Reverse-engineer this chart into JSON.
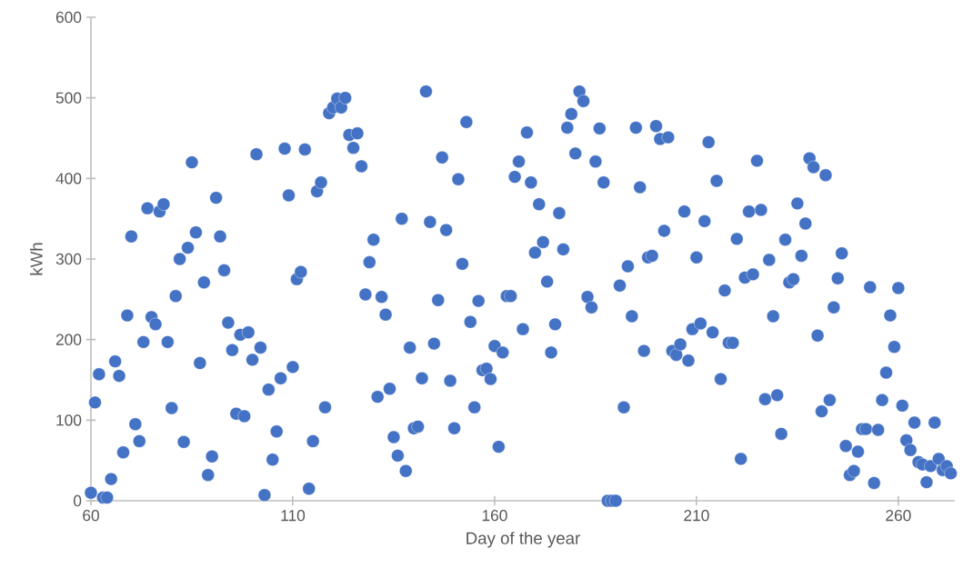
{
  "chart_data": {
    "type": "scatter",
    "xlabel": "Day of the year",
    "ylabel": "kWh",
    "color": "#4472c4",
    "marker": "circle",
    "xlim": [
      60,
      274
    ],
    "xticks": [
      60,
      110,
      160,
      210,
      260
    ],
    "ylim": [
      0,
      600
    ],
    "yticks": [
      0,
      100,
      200,
      300,
      400,
      500,
      600
    ],
    "x": [
      60,
      61,
      62,
      63,
      64,
      65,
      66,
      67,
      68,
      69,
      70,
      71,
      72,
      73,
      74,
      75,
      76,
      77,
      78,
      79,
      80,
      81,
      82,
      83,
      84,
      85,
      86,
      87,
      88,
      89,
      90,
      91,
      92,
      93,
      94,
      95,
      96,
      97,
      98,
      99,
      100,
      101,
      102,
      103,
      104,
      105,
      106,
      107,
      108,
      109,
      110,
      111,
      112,
      113,
      114,
      115,
      116,
      117,
      118,
      119,
      120,
      121,
      122,
      123,
      124,
      125,
      126,
      127,
      128,
      129,
      130,
      131,
      132,
      133,
      134,
      135,
      136,
      137,
      138,
      139,
      140,
      141,
      142,
      143,
      144,
      145,
      146,
      147,
      148,
      149,
      150,
      151,
      152,
      153,
      154,
      155,
      156,
      157,
      158,
      159,
      160,
      161,
      162,
      163,
      164,
      165,
      166,
      167,
      168,
      169,
      170,
      171,
      172,
      173,
      174,
      175,
      176,
      177,
      178,
      179,
      180,
      181,
      182,
      183,
      184,
      185,
      186,
      187,
      188,
      189,
      190,
      191,
      192,
      193,
      194,
      195,
      196,
      197,
      198,
      199,
      200,
      201,
      202,
      203,
      204,
      205,
      206,
      207,
      208,
      209,
      210,
      211,
      212,
      213,
      214,
      215,
      216,
      217,
      218,
      219,
      220,
      221,
      222,
      223,
      224,
      225,
      226,
      227,
      228,
      229,
      230,
      231,
      232,
      233,
      234,
      235,
      236,
      237,
      238,
      239,
      240,
      241,
      242,
      243,
      244,
      245,
      246,
      247,
      248,
      249,
      250,
      251,
      252,
      253,
      254,
      255,
      256,
      257,
      258,
      259,
      260,
      261,
      262,
      263,
      264,
      265,
      266,
      267,
      268,
      269,
      270,
      271,
      272,
      273
    ],
    "values": [
      10,
      122,
      157,
      4,
      4,
      27,
      173,
      155,
      60,
      230,
      328,
      95,
      74,
      197,
      363,
      228,
      219,
      359,
      368,
      197,
      115,
      254,
      300,
      73,
      314,
      420,
      333,
      171,
      271,
      32,
      55,
      376,
      328,
      286,
      221,
      187,
      108,
      206,
      105,
      209,
      175,
      430,
      190,
      7,
      138,
      51,
      86,
      152,
      437,
      379,
      166,
      275,
      284,
      436,
      15,
      74,
      384,
      395,
      116,
      481,
      488,
      499,
      488,
      500,
      454,
      438,
      456,
      415,
      256,
      296,
      324,
      129,
      253,
      231,
      139,
      79,
      56,
      350,
      37,
      190,
      90,
      92,
      152,
      508,
      346,
      195,
      249,
      426,
      336,
      149,
      90,
      399,
      294,
      470,
      222,
      116,
      248,
      162,
      164,
      151,
      192,
      67,
      184,
      254,
      254,
      402,
      421,
      213,
      457,
      395,
      308,
      368,
      321,
      272,
      184,
      219,
      357,
      312,
      463,
      480,
      431,
      508,
      496,
      253,
      240,
      421,
      462,
      395,
      0,
      0,
      0,
      267,
      116,
      291,
      229,
      463,
      389,
      186,
      302,
      304,
      465,
      449,
      335,
      451,
      186,
      181,
      194,
      359,
      174,
      213,
      302,
      220,
      347,
      445,
      209,
      397,
      151,
      261,
      196,
      196,
      325,
      52,
      277,
      359,
      281,
      422,
      361,
      126,
      299,
      229,
      131,
      83,
      324,
      271,
      275,
      369,
      304,
      344,
      425,
      414,
      205,
      111,
      404,
      125,
      240,
      276,
      307,
      68,
      32,
      37,
      61,
      89,
      89,
      265,
      22,
      88,
      125,
      159,
      230,
      191,
      264,
      118,
      75,
      63,
      97,
      48,
      45,
      23,
      43,
      97,
      52,
      38,
      43,
      34
    ]
  }
}
